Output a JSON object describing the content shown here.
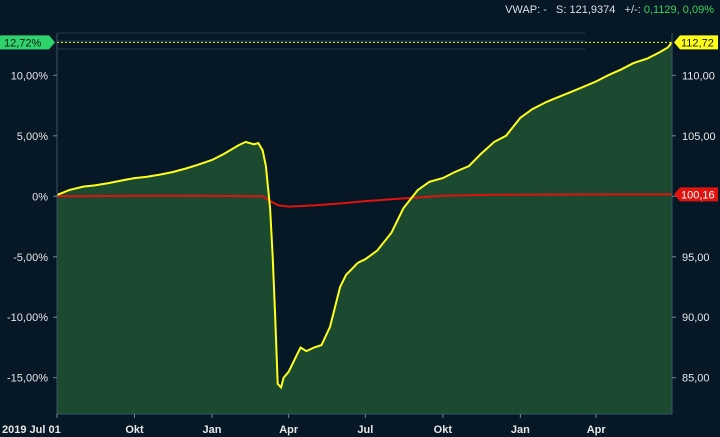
{
  "header": {
    "vwap_label": "VWAP:",
    "vwap_value": "-",
    "s_label": "S:",
    "s_value": "121,9374",
    "change_label": "+/-:",
    "change_abs": "0,1129",
    "change_pct": "0,09%"
  },
  "colors": {
    "background": "#061826",
    "area_fill": "#1b4a31",
    "area_outline": "#2e6a45",
    "main_line": "#ffff1a",
    "benchmark_line": "#e0130f",
    "gridline": "#1f3a4f",
    "axis_text": "#e6e6e6",
    "left_badge": "#2fd36b",
    "right_badge_main": "#ffff1a",
    "right_badge_bench": "#e0130f"
  },
  "chart_data": {
    "type": "line",
    "x_tick_labels": [
      "2019 Jul 01",
      "Okt",
      "Jan",
      "Apr",
      "Jul",
      "Okt",
      "Jan",
      "Apr"
    ],
    "x_tick_dates": [
      "2019-07-01",
      "2019-10-01",
      "2020-01-01",
      "2020-04-01",
      "2020-07-01",
      "2020-10-01",
      "2021-01-01",
      "2021-04-01"
    ],
    "x_range": [
      "2019-07-01",
      "2021-06-30"
    ],
    "left_axis": {
      "ticks": [
        10,
        5,
        0,
        -5,
        -10,
        -15
      ],
      "tick_labels": [
        "10,00%",
        "5,00%",
        "0%",
        "-5,00%",
        "-10,00%",
        "-15,00%"
      ],
      "range": [
        -18.0,
        13.5
      ]
    },
    "right_axis": {
      "ticks": [
        110,
        105,
        100,
        95,
        90,
        85
      ],
      "tick_labels": [
        "110,00",
        "105,00",
        "100,00",
        "95,00",
        "90,00",
        "85,00"
      ],
      "range": [
        82.0,
        113.5
      ]
    },
    "grid": true,
    "series": [
      {
        "role": "main",
        "x": [
          "2019-07-01",
          "2019-07-15",
          "2019-08-01",
          "2019-08-15",
          "2019-09-01",
          "2019-09-15",
          "2019-10-01",
          "2019-10-15",
          "2019-11-01",
          "2019-11-15",
          "2019-12-01",
          "2019-12-15",
          "2020-01-01",
          "2020-01-15",
          "2020-02-01",
          "2020-02-10",
          "2020-02-20",
          "2020-02-25",
          "2020-03-01",
          "2020-03-05",
          "2020-03-10",
          "2020-03-13",
          "2020-03-16",
          "2020-03-19",
          "2020-03-23",
          "2020-03-26",
          "2020-04-01",
          "2020-04-08",
          "2020-04-15",
          "2020-04-22",
          "2020-05-01",
          "2020-05-10",
          "2020-05-20",
          "2020-06-01",
          "2020-06-08",
          "2020-06-15",
          "2020-06-22",
          "2020-07-01",
          "2020-07-15",
          "2020-08-01",
          "2020-08-15",
          "2020-09-01",
          "2020-09-15",
          "2020-10-01",
          "2020-10-15",
          "2020-11-01",
          "2020-11-15",
          "2020-12-01",
          "2020-12-15",
          "2021-01-01",
          "2021-01-15",
          "2021-02-01",
          "2021-02-15",
          "2021-03-01",
          "2021-03-15",
          "2021-04-01",
          "2021-04-15",
          "2021-05-01",
          "2021-05-15",
          "2021-06-01",
          "2021-06-15",
          "2021-06-25",
          "2021-06-30"
        ],
        "y_pct": [
          0.1,
          0.5,
          0.8,
          0.9,
          1.1,
          1.3,
          1.5,
          1.6,
          1.8,
          2.0,
          2.3,
          2.6,
          3.0,
          3.5,
          4.2,
          4.5,
          4.3,
          4.4,
          3.8,
          2.5,
          -1.0,
          -5.0,
          -10.0,
          -15.5,
          -15.8,
          -15.0,
          -14.5,
          -13.5,
          -12.5,
          -12.8,
          -12.5,
          -12.3,
          -10.8,
          -7.5,
          -6.5,
          -6.0,
          -5.5,
          -5.2,
          -4.5,
          -3.0,
          -1.0,
          0.5,
          1.2,
          1.5,
          2.0,
          2.5,
          3.5,
          4.5,
          5.0,
          6.5,
          7.2,
          7.8,
          8.2,
          8.6,
          9.0,
          9.5,
          10.0,
          10.5,
          11.0,
          11.4,
          11.9,
          12.3,
          12.72
        ]
      },
      {
        "role": "benchmark",
        "x": [
          "2019-07-01",
          "2019-09-01",
          "2019-11-01",
          "2020-01-01",
          "2020-02-20",
          "2020-03-01",
          "2020-03-10",
          "2020-03-20",
          "2020-04-01",
          "2020-05-01",
          "2020-06-01",
          "2020-07-01",
          "2020-08-01",
          "2020-09-01",
          "2020-10-01",
          "2020-12-01",
          "2021-03-01",
          "2021-06-30"
        ],
        "y_pct": [
          0.0,
          0.02,
          0.05,
          0.03,
          0.0,
          0.0,
          -0.4,
          -0.75,
          -0.85,
          -0.75,
          -0.6,
          -0.4,
          -0.25,
          -0.1,
          0.05,
          0.12,
          0.15,
          0.16
        ]
      }
    ],
    "left_badge": {
      "label": "12,72%",
      "value": 12.72
    },
    "right_badges": [
      {
        "label": "112,72",
        "value": 112.72,
        "role": "main"
      },
      {
        "label": "100,16",
        "value": 100.16,
        "role": "benchmark"
      }
    ]
  }
}
